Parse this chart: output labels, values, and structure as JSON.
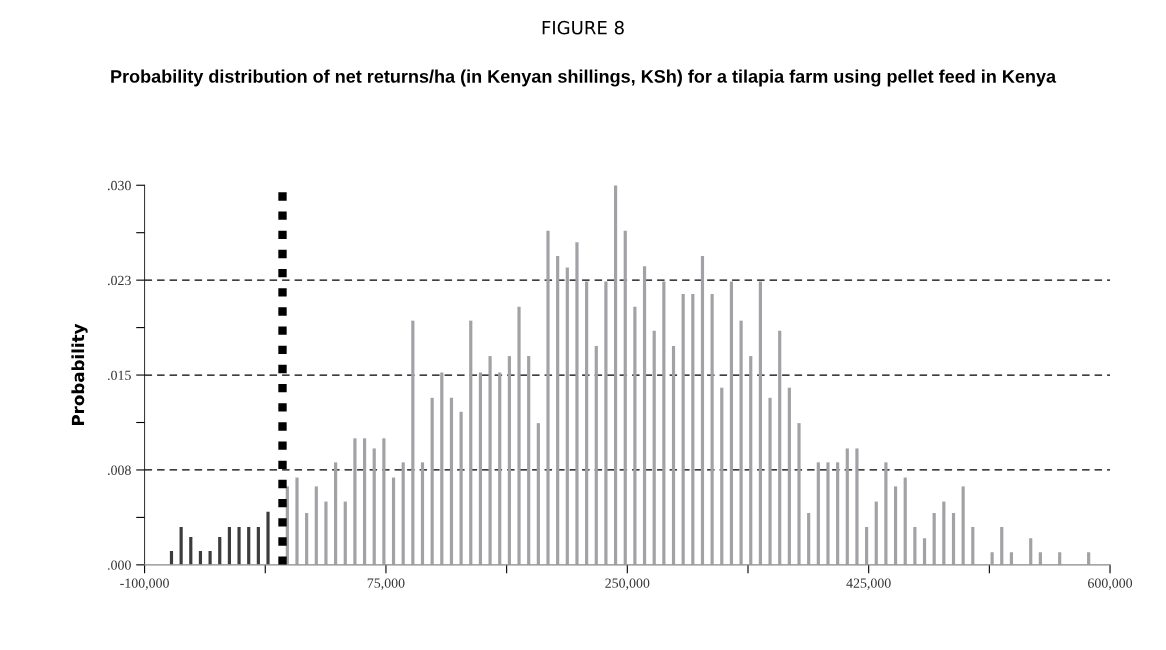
{
  "chart_data": {
    "type": "histogram",
    "title": "FIGURE 8",
    "subtitle": "Probability distribution of net returns/ha (in Kenyan shillings, KSh) for a tilapia farm using pellet feed in Kenya",
    "ylabel": "Probability",
    "bins": [
      -84000,
      -77000,
      -70000,
      -63000,
      -56000,
      -49000,
      -42000,
      -35000,
      -28000,
      -21000,
      -14000,
      -7000,
      0,
      7000,
      14000,
      21000,
      28000,
      35000,
      42000,
      49000,
      56000,
      63000,
      70000,
      77000,
      84000,
      91000,
      98000,
      105000,
      112000,
      119000,
      126000,
      133000,
      140000,
      147000,
      154000,
      161000,
      168000,
      175000,
      182000,
      189000,
      196000,
      203000,
      210000,
      217000,
      224000,
      231000,
      238000,
      245000,
      252000,
      259000,
      266000,
      273000,
      280000,
      287000,
      294000,
      301000,
      308000,
      315000,
      322000,
      329000,
      336000,
      343000,
      350000,
      357000,
      364000,
      371000,
      378000,
      385000,
      392000,
      399000,
      406000,
      413000,
      420000,
      427000,
      434000,
      441000,
      448000,
      455000,
      462000,
      469000,
      476000,
      483000,
      490000,
      497000,
      504000,
      511000,
      518000,
      525000,
      532000,
      539000,
      546000,
      553000,
      560000,
      567000,
      574000,
      581000,
      588000
    ],
    "values": [
      0.0011,
      0.003,
      0.0022,
      0.0011,
      0.0011,
      0.0022,
      0.003,
      0.003,
      0.003,
      0.003,
      0.0042,
      null,
      0.0062,
      0.0069,
      0.0041,
      0.0062,
      0.005,
      0.0081,
      0.005,
      0.01,
      0.01,
      0.0092,
      0.01,
      0.0069,
      0.0081,
      0.0193,
      0.0081,
      0.0132,
      0.0152,
      0.0132,
      0.0121,
      0.0193,
      0.0152,
      0.0165,
      0.0152,
      0.0165,
      0.0204,
      0.0165,
      0.0112,
      0.0264,
      0.0244,
      0.0235,
      0.0255,
      0.0224,
      0.0173,
      0.0224,
      0.03,
      0.0264,
      0.0204,
      0.0236,
      0.0185,
      0.0224,
      0.0173,
      0.0214,
      0.0214,
      0.0244,
      0.0214,
      0.014,
      0.0224,
      0.0193,
      0.0165,
      0.0224,
      0.0132,
      0.0185,
      0.014,
      0.0112,
      0.0041,
      0.0081,
      0.0081,
      0.0081,
      0.0092,
      0.0092,
      0.003,
      0.005,
      0.0081,
      0.0062,
      0.0069,
      0.003,
      0.0021,
      0.0041,
      0.005,
      0.0041,
      0.0062,
      0.003,
      0,
      0.001,
      0.003,
      0.001,
      0,
      0.0021,
      0.001,
      0,
      0.001,
      0,
      0,
      0.001
    ],
    "colors": [
      "#3c3c3c",
      "#3c3c3c",
      "#3c3c3c",
      "#3c3c3c",
      "#3c3c3c",
      "#3c3c3c",
      "#3c3c3c",
      "#3c3c3c",
      "#3c3c3c",
      "#3c3c3c",
      "#3c3c3c",
      "#3c3c3c",
      "#a2a2a6",
      "#a2a2a6",
      "#a2a2a6",
      "#a2a2a6",
      "#a2a2a6",
      "#a2a2a6",
      "#a2a2a6",
      "#a2a2a6",
      "#a2a2a6",
      "#a2a2a6",
      "#a2a2a6",
      "#a2a2a6",
      "#a2a2a6",
      "#a2a2a6",
      "#a2a2a6",
      "#a2a2a6",
      "#a2a2a6",
      "#a2a2a6",
      "#a2a2a6",
      "#a2a2a6",
      "#a2a2a6",
      "#a2a2a6",
      "#a2a2a6",
      "#a2a2a6",
      "#a2a2a6",
      "#a2a2a6",
      "#a2a2a6",
      "#a2a2a6",
      "#a2a2a6",
      "#a2a2a6",
      "#a2a2a6",
      "#a2a2a6",
      "#a2a2a6",
      "#a2a2a6",
      "#a2a2a6",
      "#a2a2a6",
      "#a2a2a6",
      "#a2a2a6",
      "#a2a2a6",
      "#a2a2a6",
      "#a2a2a6",
      "#a2a2a6",
      "#a2a2a6",
      "#a2a2a6",
      "#a2a2a6",
      "#a2a2a6",
      "#a2a2a6",
      "#a2a2a6",
      "#a2a2a6",
      "#a2a2a6",
      "#a2a2a6",
      "#a2a2a6",
      "#a2a2a6",
      "#a2a2a6",
      "#a2a2a6",
      "#a2a2a6",
      "#a2a2a6",
      "#a2a2a6",
      "#a2a2a6",
      "#a2a2a6",
      "#a2a2a6",
      "#a2a2a6",
      "#a2a2a6",
      "#a2a2a6",
      "#a2a2a6",
      "#a2a2a6",
      "#a2a2a6",
      "#a2a2a6",
      "#a2a2a6",
      "#a2a2a6",
      "#a2a2a6",
      "#a2a2a6",
      "#a2a2a6",
      "#a2a2a6",
      "#a2a2a6",
      "#a2a2a6",
      "#a2a2a6",
      "#a2a2a6",
      "#a2a2a6",
      "#a2a2a6",
      "#a2a2a6",
      "#a2a2a6",
      "#a2a2a6",
      "#a2a2a6"
    ],
    "xlim": [
      -100000,
      600000
    ],
    "xticks": [
      {
        "value": -100000,
        "label": "-100,000"
      },
      {
        "value": -12500,
        "label": null
      },
      {
        "value": 75000,
        "label": "75,000"
      },
      {
        "value": 162500,
        "label": null
      },
      {
        "value": 250000,
        "label": "250,000"
      },
      {
        "value": 337500,
        "label": null
      },
      {
        "value": 425000,
        "label": "425,000"
      },
      {
        "value": 512500,
        "label": null
      },
      {
        "value": 600000,
        "label": "600,000"
      }
    ],
    "ylim": [
      0,
      0.03
    ],
    "yticks": [
      {
        "value": 0,
        "label": ".000"
      },
      {
        "value": 0.00375,
        "label": null
      },
      {
        "value": 0.0075,
        "label": ".008"
      },
      {
        "value": 0.01125,
        "label": null
      },
      {
        "value": 0.015,
        "label": ".015"
      },
      {
        "value": 0.01875,
        "label": null
      },
      {
        "value": 0.0225,
        "label": ".023"
      },
      {
        "value": 0.02625,
        "label": null
      },
      {
        "value": 0.03,
        "label": ".030"
      }
    ],
    "ref_lines": [
      {
        "axis": "y",
        "value": 0.0075,
        "line_style": "dashed",
        "color": "#000000"
      },
      {
        "axis": "y",
        "value": 0.015,
        "line_style": "dashed",
        "color": "#000000"
      },
      {
        "axis": "y",
        "value": 0.0225,
        "line_style": "dashed",
        "color": "#000000"
      },
      {
        "axis": "x",
        "value": 0,
        "line_style": "dotted",
        "color": "#000000"
      }
    ]
  }
}
